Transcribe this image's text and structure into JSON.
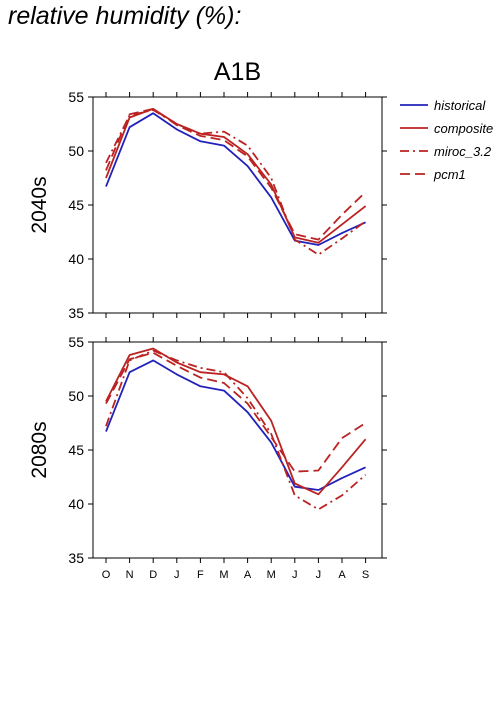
{
  "page": {
    "title": "relative humidity (%):"
  },
  "chart_data": {
    "type": "line",
    "title": "A1B",
    "categories": [
      "O",
      "N",
      "D",
      "J",
      "F",
      "M",
      "A",
      "M",
      "J",
      "J",
      "A",
      "S"
    ],
    "ylim": [
      35,
      55
    ],
    "yticks": [
      35,
      40,
      45,
      50,
      55
    ],
    "grid": false,
    "legend_position": "right",
    "legend": [
      {
        "name": "historical",
        "color": "#2222bb",
        "dash": "solid"
      },
      {
        "name": "composite",
        "color": "#bb2222",
        "dash": "solid"
      },
      {
        "name": "miroc_3.2",
        "color": "#bb2222",
        "dash": "dashdot"
      },
      {
        "name": "pcm1",
        "color": "#bb2222",
        "dash": "dashed"
      }
    ],
    "panels": [
      {
        "label": "2040s",
        "series": [
          {
            "name": "historical",
            "values": [
              46.7,
              52.2,
              53.5,
              52.0,
              50.9,
              50.5,
              48.6,
              45.7,
              41.7,
              41.3,
              42.4,
              43.4
            ]
          },
          {
            "name": "composite",
            "values": [
              47.5,
              53.1,
              53.9,
              52.5,
              51.6,
              51.3,
              49.7,
              46.9,
              42.0,
              41.5,
              43.2,
              44.9
            ]
          },
          {
            "name": "miroc_3.2",
            "values": [
              48.9,
              53.3,
              53.8,
              52.5,
              51.6,
              51.8,
              50.5,
              47.5,
              41.8,
              40.4,
              41.9,
              43.5
            ]
          },
          {
            "name": "pcm1",
            "values": [
              48.2,
              53.4,
              53.9,
              52.4,
              51.4,
              51.0,
              49.5,
              46.6,
              42.3,
              41.8,
              44.1,
              46.2
            ]
          }
        ]
      },
      {
        "label": "2080s",
        "series": [
          {
            "name": "historical",
            "values": [
              46.7,
              52.2,
              53.3,
              52.0,
              50.9,
              50.5,
              48.5,
              45.7,
              41.6,
              41.3,
              42.4,
              43.4
            ]
          },
          {
            "name": "composite",
            "values": [
              49.5,
              53.8,
              54.4,
              53.1,
              52.2,
              52.0,
              50.9,
              47.7,
              41.9,
              40.9,
              43.4,
              46.0
            ]
          },
          {
            "name": "miroc_3.2",
            "values": [
              47.2,
              53.3,
              54.2,
              53.3,
              52.6,
              52.2,
              49.8,
              46.5,
              40.8,
              39.5,
              40.8,
              42.7
            ]
          },
          {
            "name": "pcm1",
            "values": [
              49.3,
              53.4,
              54.0,
              52.8,
              51.7,
              51.2,
              49.3,
              46.2,
              43.0,
              43.1,
              46.1,
              47.5
            ]
          }
        ]
      }
    ]
  }
}
